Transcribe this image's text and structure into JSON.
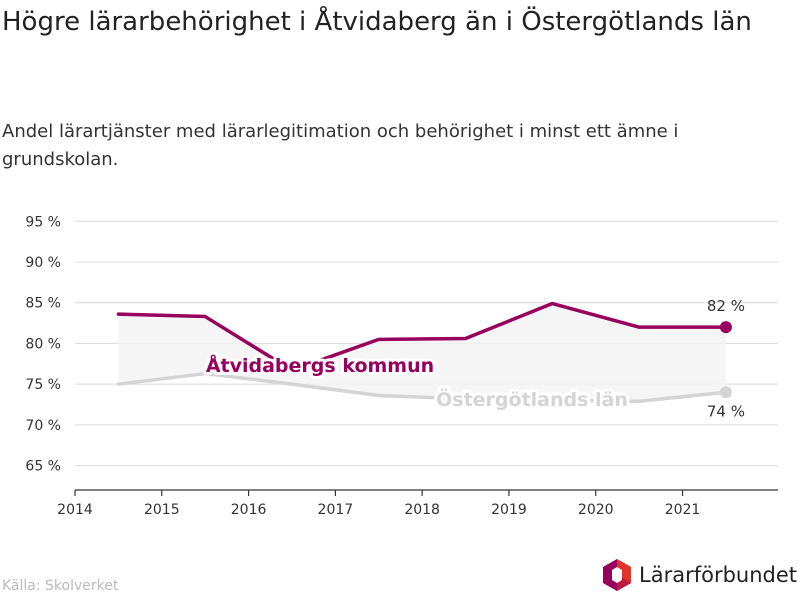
{
  "chart_data": {
    "type": "line",
    "title": "Högre lärarbehörighet i Åtvidaberg än i Östergötlands län",
    "subtitle": "Andel lärartjänster med lärarlegitimation och behörighet i minst ett ämne i grundskolan.",
    "x_ticks": [
      "2014",
      "2015",
      "2016",
      "2017",
      "2018",
      "2019",
      "2020",
      "2021"
    ],
    "y_ticks": [
      "95 %",
      "90 %",
      "85 %",
      "80 %",
      "75 %",
      "70 %",
      "65 %"
    ],
    "ylim": [
      62,
      97
    ],
    "xlim": [
      2014,
      2022.1
    ],
    "grid": true,
    "series": [
      {
        "name": "Åtvidabergs kommun",
        "color": "#98005d",
        "x": [
          2014.5,
          2015.5,
          2016.5,
          2017.5,
          2018.5,
          2019.5,
          2020.5,
          2021.5
        ],
        "values": [
          83.6,
          83.3,
          76.7,
          80.5,
          80.6,
          84.9,
          82.0,
          82.0
        ],
        "end_label": "82 %"
      },
      {
        "name": "Östergötlands län",
        "color": "#d4d4d4",
        "x": [
          2014.5,
          2015.5,
          2016.5,
          2017.5,
          2018.5,
          2019.5,
          2020.5,
          2021.5
        ],
        "values": [
          75.0,
          76.3,
          75.0,
          73.6,
          73.2,
          73.0,
          72.9,
          74.0
        ],
        "end_label": "74 %"
      }
    ]
  },
  "source": "Källa: Skolverket",
  "brand": {
    "name": "Lärarförbundet",
    "colors": [
      "#98005d",
      "#e2352a"
    ]
  }
}
